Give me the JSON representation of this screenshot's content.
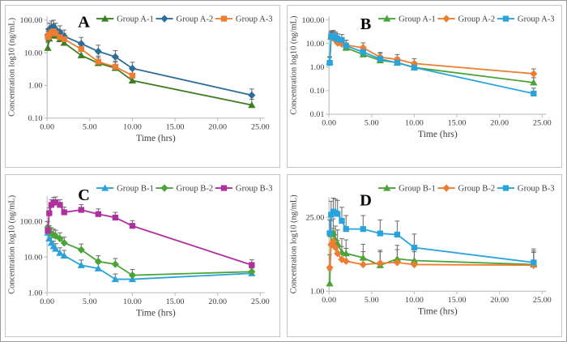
{
  "figure": {
    "description": "Four-panel concentration-time pharmacokinetic figure",
    "axis_color": "#bfbfbf",
    "text_color": "#3d3d3d",
    "error_bar_color": "#6e6e6e",
    "panel_letters": [
      "A",
      "B",
      "C",
      "D"
    ]
  },
  "chart_data": [
    {
      "type": "line",
      "panel_label": "A",
      "xlabel": "Time (hrs)",
      "ylabel": "Concentration log10 (ng/mL)",
      "y_scale": "log10",
      "grid": false,
      "legend_position": "top",
      "error_bars": "upper",
      "ylim": [
        0.1,
        130
      ],
      "yticks": [
        100,
        10,
        1,
        0.1
      ],
      "ytick_labels": [
        "100.00",
        "10.00",
        "1.00",
        "0.10"
      ],
      "xlim": [
        0,
        25.5
      ],
      "xticks": [
        0,
        5,
        10,
        15,
        20,
        25
      ],
      "xtick_labels": [
        "0.00",
        "5.00",
        "10.00",
        "15.00",
        "20.00",
        "25.00"
      ],
      "x": [
        0.083,
        0.25,
        0.5,
        0.75,
        1,
        1.5,
        2,
        4,
        6,
        8,
        10,
        24
      ],
      "series": [
        {
          "name": "Group A-1",
          "marker": "triangle",
          "color": "#3e7d24",
          "err_top_ratio": 1.5,
          "values": [
            14,
            27,
            34,
            38,
            33,
            26,
            20,
            8.3,
            4.8,
            3.4,
            1.4,
            0.25
          ]
        },
        {
          "name": "Group A-2",
          "marker": "diamond",
          "color": "#2c6e97",
          "err_top_ratio": 1.55,
          "values": [
            35,
            52,
            60,
            64,
            52,
            43,
            32,
            19,
            11,
            7.5,
            3.3,
            0.5
          ]
        },
        {
          "name": "Group A-3",
          "marker": "square",
          "color": "#ed7d31",
          "err_top_ratio": 1.5,
          "values": [
            30,
            36,
            42,
            45,
            39,
            30,
            26,
            13,
            5.3,
            3.7,
            2.0,
            null
          ]
        }
      ]
    },
    {
      "type": "line",
      "panel_label": "B",
      "xlabel": "Time (hrs)",
      "ylabel": "Concentration log10 (ng/mL)",
      "y_scale": "log10",
      "grid": false,
      "legend_position": "top",
      "error_bars": "upper",
      "ylim": [
        0.01,
        140
      ],
      "yticks": [
        100,
        10,
        1,
        0.1,
        0.01
      ],
      "ytick_labels": [
        "100.00",
        "10.00",
        "1.00",
        "0.10",
        "0.01"
      ],
      "xlim": [
        0,
        25.5
      ],
      "xticks": [
        0,
        5,
        10,
        15,
        20,
        25
      ],
      "xtick_labels": [
        "0.00",
        "5.00",
        "10.00",
        "15.00",
        "20.00",
        "25.00"
      ],
      "x": [
        0.083,
        0.25,
        0.5,
        0.75,
        1,
        1.5,
        2,
        4,
        6,
        8,
        10,
        24
      ],
      "series": [
        {
          "name": "Group A-1",
          "marker": "triangle",
          "color": "#4aa437",
          "err_top_ratio": 1.6,
          "values": [
            1.7,
            19,
            20,
            17,
            13,
            10.5,
            6.5,
            3.4,
            1.9,
            1.55,
            0.95,
            0.22
          ]
        },
        {
          "name": "Group A-2",
          "marker": "diamond",
          "color": "#ed7d31",
          "err_top_ratio": 1.6,
          "values": [
            null,
            18,
            17,
            14,
            10.5,
            9.5,
            8.5,
            6.6,
            2.6,
            2.1,
            1.4,
            0.52
          ]
        },
        {
          "name": "Group A-3",
          "marker": "square",
          "color": "#29a3dc",
          "err_top_ratio": 1.7,
          "values": [
            1.5,
            20,
            21,
            18,
            15,
            14,
            8,
            4.3,
            2.2,
            1.5,
            0.95,
            0.075
          ]
        }
      ]
    },
    {
      "type": "line",
      "panel_label": "C",
      "xlabel": "Time (hrs)",
      "ylabel": "Concentration log10 (ng/mL)",
      "y_scale": "log10",
      "grid": false,
      "legend_position": "top",
      "error_bars": "upper",
      "ylim": [
        1,
        500
      ],
      "yticks": [
        100,
        10,
        1
      ],
      "ytick_labels": [
        "100.00",
        "10.00",
        "1.00"
      ],
      "xlim": [
        0,
        25.5
      ],
      "xticks": [
        0,
        5,
        10,
        15,
        20,
        25
      ],
      "xtick_labels": [
        "0.00",
        "5.00",
        "10.00",
        "15.00",
        "20.00",
        "25.00"
      ],
      "x": [
        0.083,
        0.25,
        0.5,
        0.75,
        1,
        1.5,
        2,
        4,
        6,
        8,
        10,
        24
      ],
      "series": [
        {
          "name": "Group B-1",
          "marker": "triangle",
          "color": "#29a3dc",
          "err_top_ratio": 1.4,
          "values": [
            48,
            33,
            25,
            20,
            17,
            13,
            11,
            5.9,
            4.8,
            2.4,
            2.4,
            3.5
          ]
        },
        {
          "name": "Group B-2",
          "marker": "diamond",
          "color": "#4aa437",
          "err_top_ratio": 1.45,
          "values": [
            68,
            52,
            46,
            42,
            39,
            33,
            25,
            16,
            7.5,
            6.3,
            3.1,
            3.9
          ]
        },
        {
          "name": "Group B-3",
          "marker": "square",
          "color": "#b02f9e",
          "err_top_ratio": 1.4,
          "values": [
            55,
            170,
            290,
            335,
            345,
            290,
            180,
            210,
            160,
            128,
            75,
            6.0
          ]
        }
      ]
    },
    {
      "type": "line",
      "panel_label": "D",
      "xlabel": "Time (hrs)",
      "ylabel": "Concentration log10 (ng/mL)",
      "y_scale": "log10",
      "grid": false,
      "legend_position": "top",
      "error_bars": "upper",
      "ylim": [
        1,
        60
      ],
      "yticks": [
        25,
        1
      ],
      "ytick_labels": [
        "25.00",
        "1.00"
      ],
      "xlim": [
        0,
        25.5
      ],
      "xticks": [
        0,
        5,
        10,
        15,
        20,
        25
      ],
      "xtick_labels": [
        "0.00",
        "5.00",
        "10.00",
        "15.00",
        "20.00",
        "25.00"
      ],
      "x": [
        0.083,
        0.25,
        0.5,
        0.75,
        1,
        1.5,
        2,
        4,
        6,
        8,
        10,
        24
      ],
      "series": [
        {
          "name": "Group B-1",
          "marker": "triangle",
          "color": "#4aa437",
          "err_top_ratio": 1.8,
          "values": [
            1.4,
            12,
            13,
            9.5,
            8,
            5.5,
            5.2,
            4.3,
            3.1,
            4.1,
            3.8,
            3.2
          ]
        },
        {
          "name": "Group B-2",
          "marker": "diamond",
          "color": "#ed7d31",
          "err_top_ratio": 1.75,
          "values": [
            2.8,
            7.6,
            8.8,
            6.7,
            5.2,
            4.0,
            3.7,
            3.2,
            3.4,
            3.5,
            3.2,
            3.1
          ]
        },
        {
          "name": "Group B-3",
          "marker": "square",
          "color": "#29a3dc",
          "err_top_ratio": 1.8,
          "values": [
            12.5,
            28,
            32,
            30.5,
            29,
            21.5,
            15,
            15,
            12.4,
            11.8,
            6.7,
            3.5
          ]
        }
      ]
    }
  ]
}
